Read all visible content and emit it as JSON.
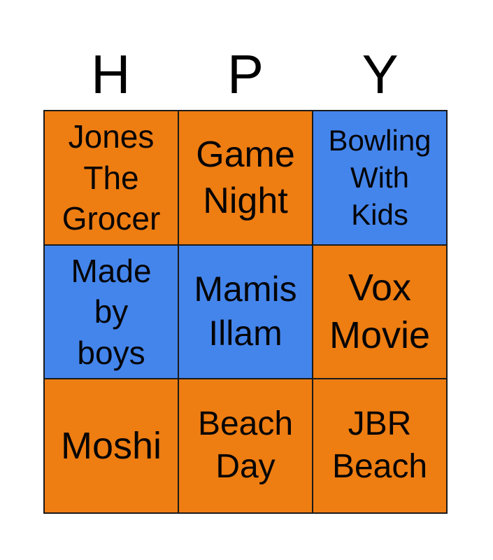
{
  "page": {
    "background": "#ffffff"
  },
  "title": {
    "letters": [
      "H",
      "P",
      "Y"
    ],
    "color": "#000000"
  },
  "card": {
    "border_color": "#1a1a1a",
    "text_color": "#050505",
    "colors": {
      "orange": "#ee7d12",
      "blue": "#4485ec"
    },
    "cells": [
      {
        "label": "Jones The Grocer",
        "lines": [
          "Jones",
          "The",
          "Grocer"
        ],
        "bg": "#ee7d12"
      },
      {
        "label": "Game Night",
        "lines": [
          "Game",
          "Night"
        ],
        "bg": "#ee7d12"
      },
      {
        "label": "Bowling With Kids",
        "lines": [
          "Bowling",
          "With",
          "Kids"
        ],
        "bg": "#4485ec"
      },
      {
        "label": "Made by boys",
        "lines": [
          "Made",
          "by",
          "boys"
        ],
        "bg": "#4485ec"
      },
      {
        "label": "Mamis Illam",
        "lines": [
          "Mamis",
          "Illam"
        ],
        "bg": "#4485ec"
      },
      {
        "label": "Vox Movie",
        "lines": [
          "Vox",
          "Movie"
        ],
        "bg": "#ee7d12"
      },
      {
        "label": "Moshi",
        "lines": [
          "Moshi"
        ],
        "bg": "#ee7d12"
      },
      {
        "label": "Beach Day",
        "lines": [
          "Beach",
          "Day"
        ],
        "bg": "#ee7d12"
      },
      {
        "label": "JBR Beach",
        "lines": [
          "JBR",
          "Beach"
        ],
        "bg": "#ee7d12"
      }
    ]
  }
}
